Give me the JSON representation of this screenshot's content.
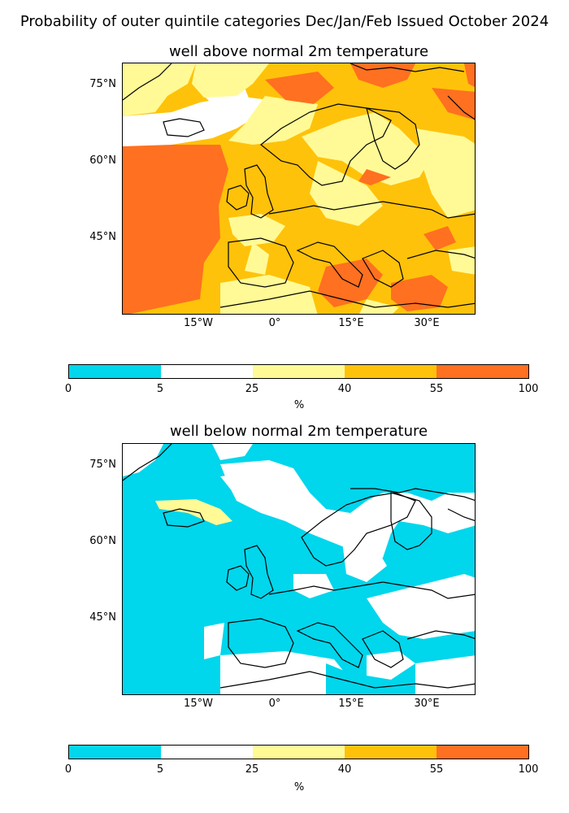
{
  "suptitle": "Probability of outer quintile categories Dec/Jan/Feb Issued October 2024",
  "colors": {
    "c0_5": "#00d6ec",
    "c5_25": "#ffffff",
    "c25_40": "#fffa96",
    "c40_55": "#ffc20a",
    "c55_100": "#ff7020",
    "coast": "#000000"
  },
  "panels": [
    {
      "title": "well above normal 2m temperature",
      "lat_ticks": [
        "75°N",
        "60°N",
        "45°N"
      ],
      "lon_ticks": [
        "15°W",
        "0°",
        "15°E",
        "30°E"
      ]
    },
    {
      "title": "well below normal 2m temperature",
      "lat_ticks": [
        "75°N",
        "60°N",
        "45°N"
      ],
      "lon_ticks": [
        "15°W",
        "0°",
        "15°E",
        "30°E"
      ]
    }
  ],
  "colorbar": {
    "ticks": [
      "0",
      "5",
      "25",
      "40",
      "55",
      "100"
    ],
    "label": "%"
  }
}
